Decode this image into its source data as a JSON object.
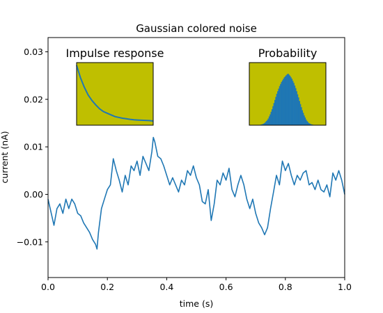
{
  "chart_data": [
    {
      "type": "line",
      "title": "Gaussian colored noise",
      "xlabel": "time (s)",
      "ylabel": "current (nA)",
      "xlim": [
        0,
        1
      ],
      "ylim": [
        -0.0175,
        0.033
      ],
      "xticks": [
        0,
        0.2,
        0.4,
        0.6,
        0.8,
        1
      ],
      "xtick_labels": [
        "0.0",
        "0.2",
        "0.4",
        "0.6",
        "0.8",
        "1.0"
      ],
      "yticks": [
        -0.01,
        0,
        0.01,
        0.02,
        0.03
      ],
      "ytick_labels": [
        "−0.01",
        "0.00",
        "0.01",
        "0.02",
        "0.03"
      ],
      "grid": false,
      "series": [
        {
          "color": "#1f77b4",
          "x": [
            0,
            0.02,
            0.03,
            0.04,
            0.05,
            0.06,
            0.07,
            0.08,
            0.09,
            0.1,
            0.11,
            0.12,
            0.13,
            0.14,
            0.15,
            0.16,
            0.165,
            0.17,
            0.18,
            0.19,
            0.2,
            0.21,
            0.22,
            0.23,
            0.24,
            0.25,
            0.26,
            0.27,
            0.28,
            0.29,
            0.3,
            0.31,
            0.32,
            0.33,
            0.34,
            0.35,
            0.355,
            0.36,
            0.37,
            0.38,
            0.39,
            0.4,
            0.41,
            0.42,
            0.43,
            0.44,
            0.45,
            0.46,
            0.47,
            0.48,
            0.49,
            0.5,
            0.51,
            0.52,
            0.53,
            0.54,
            0.55,
            0.56,
            0.57,
            0.58,
            0.59,
            0.6,
            0.61,
            0.62,
            0.63,
            0.64,
            0.65,
            0.66,
            0.67,
            0.68,
            0.69,
            0.7,
            0.71,
            0.72,
            0.73,
            0.74,
            0.75,
            0.76,
            0.77,
            0.78,
            0.79,
            0.8,
            0.81,
            0.82,
            0.83,
            0.84,
            0.85,
            0.86,
            0.87,
            0.88,
            0.89,
            0.9,
            0.91,
            0.92,
            0.93,
            0.94,
            0.95,
            0.96,
            0.97,
            0.98,
            0.99,
            1.0
          ],
          "y": [
            -0.001,
            -0.0065,
            -0.003,
            -0.002,
            -0.004,
            -0.001,
            -0.003,
            -0.001,
            -0.002,
            -0.004,
            -0.0045,
            -0.006,
            -0.007,
            -0.008,
            -0.0095,
            -0.0105,
            -0.0115,
            -0.008,
            -0.003,
            -0.001,
            0.001,
            0.002,
            0.0075,
            0.005,
            0.003,
            0.0005,
            0.004,
            0.002,
            0.006,
            0.005,
            0.007,
            0.004,
            0.008,
            0.0065,
            0.005,
            0.009,
            0.012,
            0.011,
            0.008,
            0.0075,
            0.006,
            0.004,
            0.002,
            0.0035,
            0.002,
            0.0005,
            0.003,
            0.002,
            0.005,
            0.004,
            0.006,
            0.0035,
            0.002,
            -0.0015,
            -0.002,
            0.001,
            -0.0055,
            -0.002,
            0.003,
            0.002,
            0.0045,
            0.003,
            0.0055,
            0.001,
            -0.0005,
            0.002,
            0.004,
            0.002,
            -0.001,
            -0.003,
            -0.001,
            -0.004,
            -0.006,
            -0.007,
            -0.0085,
            -0.007,
            -0.003,
            0.0005,
            0.004,
            0.002,
            0.007,
            0.005,
            0.0065,
            0.004,
            0.002,
            0.004,
            0.003,
            0.0045,
            0.005,
            0.002,
            0.0025,
            0.001,
            0.003,
            0.001,
            0.0005,
            0.002,
            -0.0005,
            0.0045,
            0.003,
            0.005,
            0.003,
            0.0
          ]
        }
      ]
    },
    {
      "type": "line",
      "title": "Impulse response",
      "background": "#bfbf00",
      "series": [
        {
          "color": "#1f77b4",
          "x": [
            0,
            0.05,
            0.1,
            0.15,
            0.2,
            0.25,
            0.3,
            0.35,
            0.4,
            0.45,
            0.5,
            0.55,
            0.6,
            0.65,
            0.7,
            0.75,
            0.8,
            0.85,
            0.9,
            0.95,
            1.0
          ],
          "y": [
            1.0,
            0.78,
            0.61,
            0.47,
            0.37,
            0.29,
            0.22,
            0.17,
            0.14,
            0.11,
            0.08,
            0.065,
            0.05,
            0.04,
            0.03,
            0.023,
            0.018,
            0.014,
            0.011,
            0.008,
            0.0
          ]
        }
      ]
    },
    {
      "type": "bar",
      "title": "Probability",
      "background": "#bfbf00",
      "color": "#1f77b4",
      "values": [
        0.005,
        0.01,
        0.015,
        0.02,
        0.03,
        0.04,
        0.06,
        0.08,
        0.1,
        0.13,
        0.17,
        0.21,
        0.26,
        0.31,
        0.37,
        0.43,
        0.49,
        0.55,
        0.61,
        0.66,
        0.71,
        0.76,
        0.8,
        0.84,
        0.87,
        0.9,
        0.93,
        0.95,
        0.97,
        0.99,
        1.0,
        0.98,
        0.96,
        0.93,
        0.9,
        0.86,
        0.82,
        0.77,
        0.72,
        0.66,
        0.6,
        0.54,
        0.47,
        0.41,
        0.35,
        0.29,
        0.24,
        0.19,
        0.15,
        0.11,
        0.08,
        0.06,
        0.04,
        0.03,
        0.02,
        0.015,
        0.01,
        0.006,
        0.004,
        0.002
      ]
    }
  ]
}
